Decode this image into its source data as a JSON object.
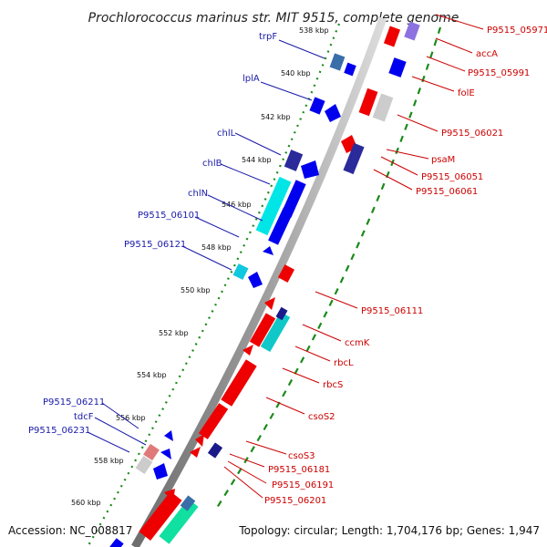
{
  "title": "Prochlorococcus marinus str. MIT 9515, complete genome",
  "accession": "Accession: NC_008817",
  "topology": "Topology: circular; Length: 1,704,176 bp; Genes: 1,947",
  "colors": {
    "forward": "#0000ee",
    "reverse": "#ee0000",
    "forward_label": "#1a1aaa",
    "reverse_label": "#cc0000",
    "rna": "#00e5e5",
    "backbone_dark": "#7a7a7a",
    "backbone_light": "#d6d6d6",
    "tick": "#1a8a1a"
  },
  "kbp_ticks": [
    "538 kbp",
    "540 kbp",
    "542 kbp",
    "544 kbp",
    "546 kbp",
    "548 kbp",
    "550 kbp",
    "552 kbp",
    "554 kbp",
    "556 kbp",
    "558 kbp",
    "560 kbp"
  ],
  "left_labels": [
    "trpF",
    "lplA",
    "chlL",
    "chlB",
    "chlN",
    "P9515_06101",
    "P9515_06121",
    "P9515_06211",
    "tdcF",
    "P9515_06231"
  ],
  "right_labels": [
    "P9515_05971",
    "accA",
    "P9515_05991",
    "folE",
    "P9515_06021",
    "psaM",
    "P9515_06051",
    "P9515_06061",
    "P9515_06111",
    "ccmK",
    "rbcL",
    "rbcS",
    "csoS2",
    "csoS3",
    "P9515_06181",
    "P9515_06191",
    "P9515_06201"
  ]
}
